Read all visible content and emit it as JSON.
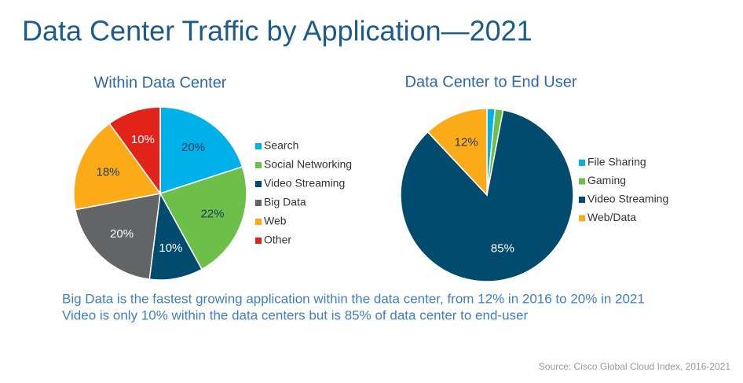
{
  "title": "Data Center Traffic by Application—2021",
  "chart_data": [
    {
      "type": "pie",
      "title": "Within Data Center",
      "categories": [
        "Search",
        "Social Networking",
        "Video Streaming",
        "Big Data",
        "Web",
        "Other"
      ],
      "values": [
        20,
        22,
        10,
        20,
        18,
        10
      ],
      "value_labels": [
        "20%",
        "22%",
        "10%",
        "20%",
        "18%",
        "10%"
      ],
      "colors": [
        "#00b0e8",
        "#6cc04a",
        "#004b6e",
        "#636466",
        "#fbab18",
        "#e2231a"
      ]
    },
    {
      "type": "pie",
      "title": "Data Center to End User",
      "categories": [
        "File Sharing",
        "Gaming",
        "Video Streaming",
        "Web/Data"
      ],
      "values": [
        1.5,
        1.5,
        85,
        12
      ],
      "value_labels": [
        null,
        null,
        "85%",
        "12%"
      ],
      "colors": [
        "#00b0e8",
        "#6cc04a",
        "#004b6e",
        "#fbab18"
      ]
    }
  ],
  "notes": [
    "Big Data is the fastest growing application within the data center, from 12% in 2016 to 20% in 2021",
    "Video is only 10% within the data centers but is 85% of data center to end-user"
  ],
  "source": "Source: Cisco Global Cloud Index, 2016-2021"
}
